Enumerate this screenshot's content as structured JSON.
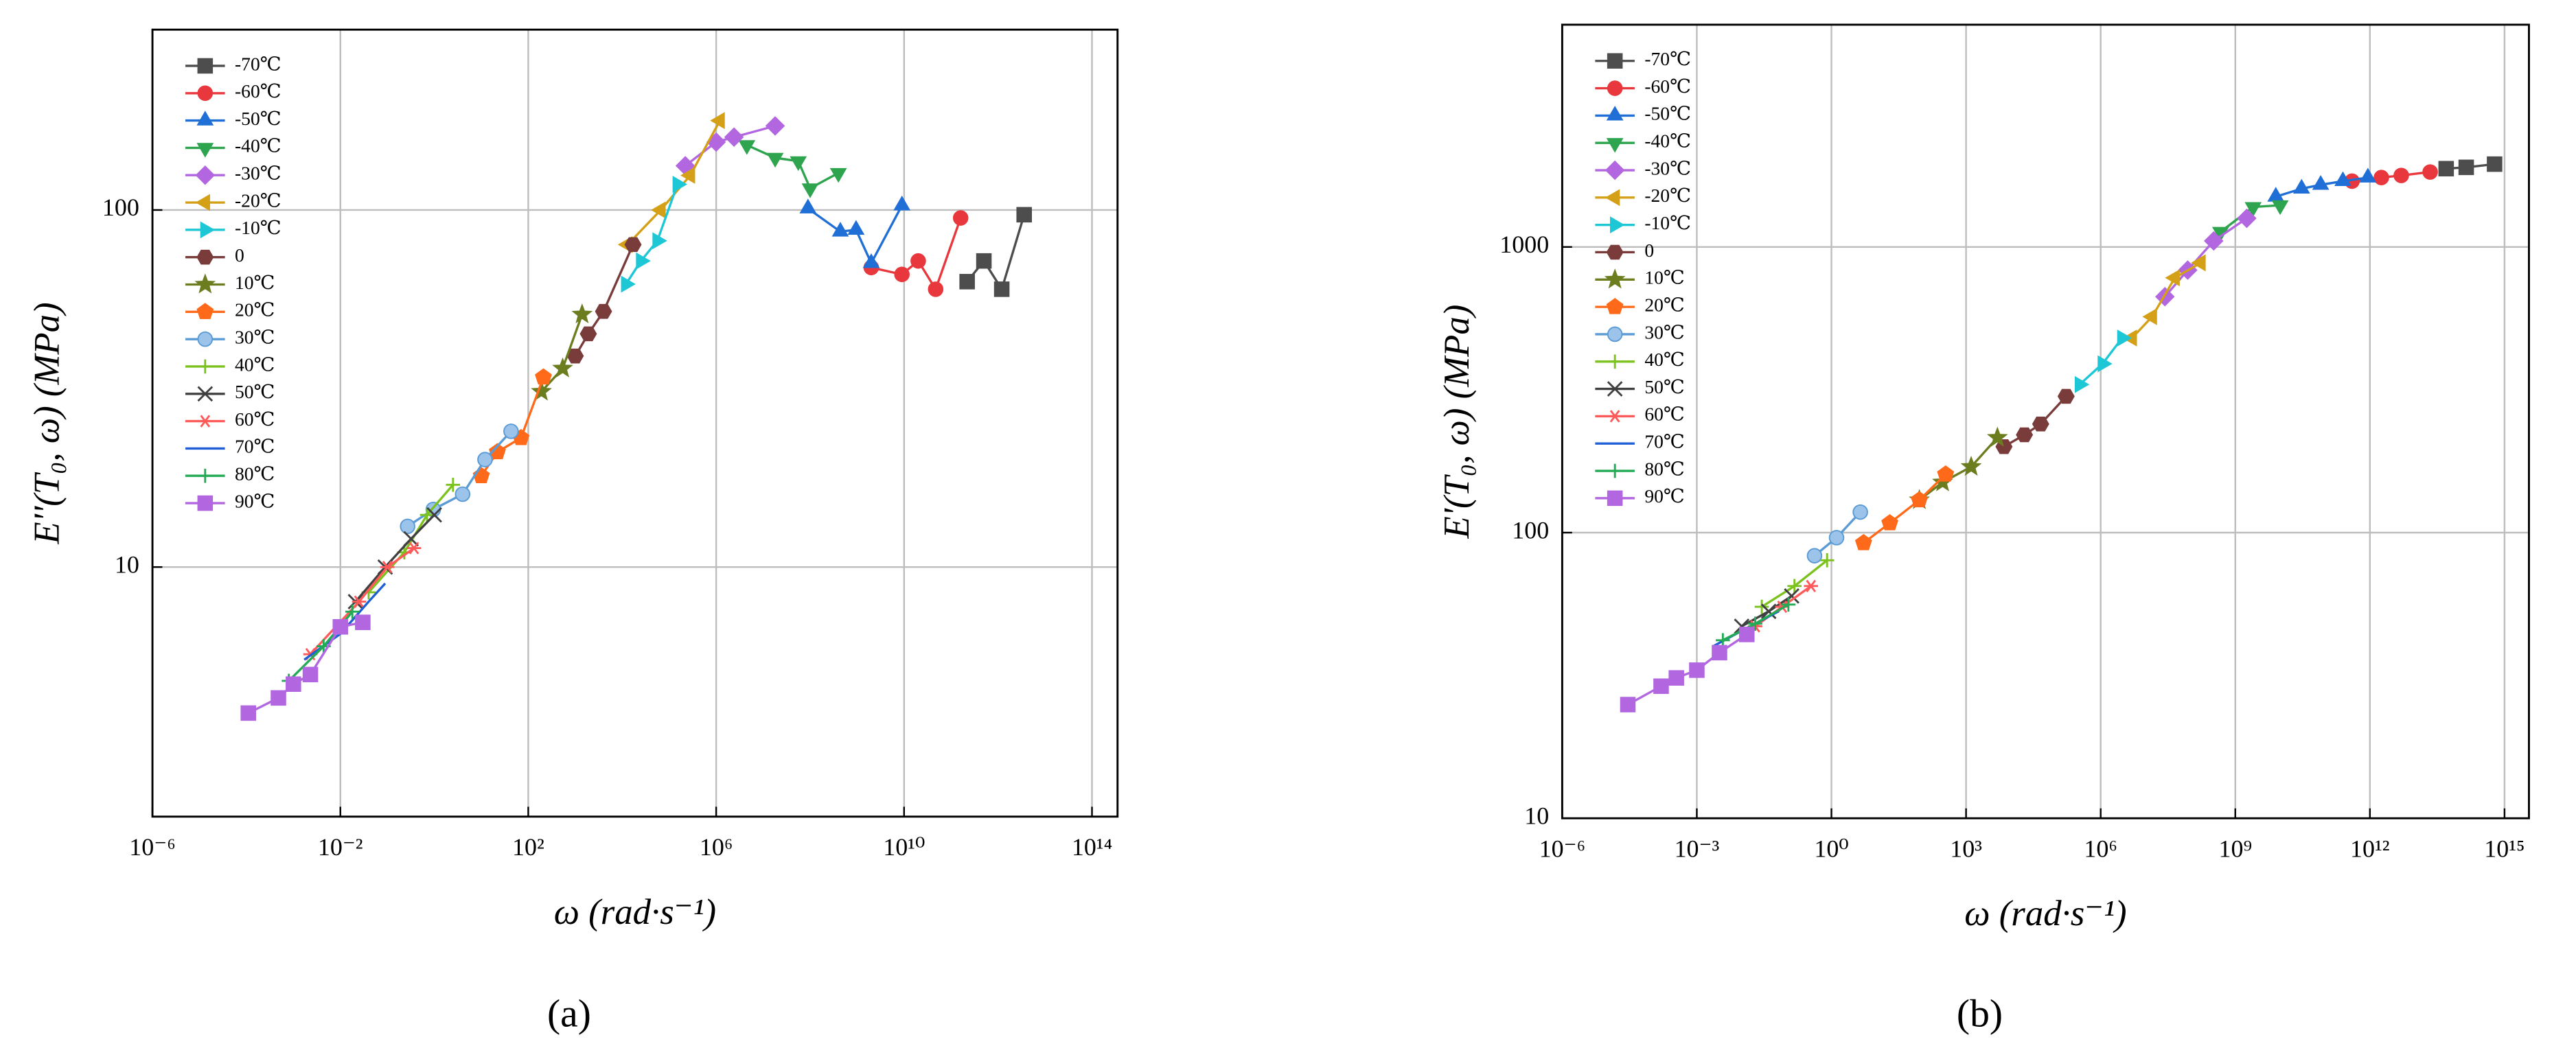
{
  "chart_data": [
    {
      "type": "line",
      "caption": "(a)",
      "xlabel": "ω (rad·s⁻¹)",
      "ylabel": "E''(T₀, ω) (MPa)",
      "xscale": "log",
      "yscale": "log",
      "xlim": [
        1e-06,
        350000000000000.0
      ],
      "ylim": [
        2,
        320
      ],
      "xticks": [
        {
          "value": 1e-06,
          "label": "10⁻⁶"
        },
        {
          "value": 0.01,
          "label": "10⁻²"
        },
        {
          "value": 100.0,
          "label": "10²"
        },
        {
          "value": 1000000.0,
          "label": "10⁶"
        },
        {
          "value": 10000000000.0,
          "label": "10¹⁰"
        },
        {
          "value": 100000000000000.0,
          "label": "10¹⁴"
        }
      ],
      "yticks": [
        10,
        100
      ],
      "grid": true,
      "legend": "upper left",
      "series": [
        {
          "name": "-70℃",
          "color": "#4d4d4d",
          "marker": "square",
          "x": [
            220000000000.0,
            500000000000.0,
            1200000000000.0,
            3600000000000.0
          ],
          "values": [
            63,
            72,
            60,
            97
          ]
        },
        {
          "name": "-60℃",
          "color": "#e8383d",
          "marker": "circle",
          "x": [
            2000000000.0,
            9000000000.0,
            20000000000.0,
            47000000000.0,
            160000000000.0
          ],
          "values": [
            69,
            66,
            72,
            60,
            95
          ]
        },
        {
          "name": "-50℃",
          "color": "#1f6fd6",
          "marker": "triangle-up",
          "x": [
            90000000.0,
            440000000.0,
            950000000.0,
            2000000000.0,
            9000000000.0
          ],
          "values": [
            101,
            87,
            88,
            71,
            103
          ]
        },
        {
          "name": "-40℃",
          "color": "#2ea44f",
          "marker": "triangle-down",
          "x": [
            4500000.0,
            18000000.0,
            56000000.0,
            100000000.0,
            400000000.0
          ],
          "values": [
            152,
            140,
            137,
            115,
            127
          ]
        },
        {
          "name": "-30℃",
          "color": "#b266e0",
          "marker": "diamond",
          "x": [
            220000.0,
            1000000.0,
            2400000.0,
            18000000.0
          ],
          "values": [
            133,
            155,
            160,
            172
          ]
        },
        {
          "name": "-20℃",
          "color": "#d4a017",
          "marker": "triangle-left",
          "x": [
            13000.0,
            66000.0,
            280000.0,
            1200000.0
          ],
          "values": [
            80,
            100,
            125,
            178
          ]
        },
        {
          "name": "-10℃",
          "color": "#1ec7d6",
          "marker": "triangle-right",
          "x": [
            12000.0,
            25000.0,
            56000.0,
            150000.0
          ],
          "values": [
            62,
            72,
            82,
            118
          ]
        },
        {
          "name": "0",
          "color": "#7a3b3b",
          "marker": "hexagon",
          "x": [
            1000.0,
            1900.0,
            4000.0,
            17000.0
          ],
          "values": [
            39,
            45,
            52,
            80
          ]
        },
        {
          "name": "10℃",
          "color": "#6b7d1f",
          "marker": "star",
          "x": [
            190,
            540,
            1400
          ],
          "values": [
            31,
            36,
            51
          ]
        },
        {
          "name": "20℃",
          "color": "#ff6a1a",
          "marker": "pentagon",
          "x": [
            10,
            22,
            70,
            210
          ],
          "values": [
            18,
            21,
            23,
            34
          ]
        },
        {
          "name": "30℃",
          "color": "#5b9bd5",
          "marker": "circle",
          "x": [
            0.27,
            0.95,
            4,
            12,
            43
          ],
          "values": [
            13,
            14.5,
            16,
            20,
            24
          ]
        },
        {
          "name": "40℃",
          "color": "#7cc21f",
          "marker": "plus",
          "x": [
            0.04,
            0.23,
            0.7,
            2.5
          ],
          "values": [
            8.5,
            11,
            14,
            17
          ]
        },
        {
          "name": "50℃",
          "color": "#404040",
          "marker": "x",
          "x": [
            0.021,
            0.09,
            0.32,
            1
          ],
          "values": [
            8,
            10,
            12,
            14
          ]
        },
        {
          "name": "60℃",
          "color": "#ff5a5a",
          "marker": "asterisk",
          "x": [
            0.0023,
            0.025,
            0.1,
            0.37
          ],
          "values": [
            5.7,
            8,
            10,
            11.3
          ]
        },
        {
          "name": "70℃",
          "color": "#1f5fd6",
          "marker": "none",
          "x": [
            0.0017,
            0.01,
            0.04,
            0.09
          ],
          "values": [
            5.5,
            6.5,
            8,
            9
          ]
        },
        {
          "name": "80℃",
          "color": "#22aa55",
          "marker": "plus",
          "x": [
            0.0008,
            0.0044,
            0.018
          ],
          "values": [
            4.8,
            6,
            7.5
          ]
        },
        {
          "name": "90℃",
          "color": "#b266e0",
          "marker": "square",
          "x": [
            0.00011,
            0.00048,
            0.001,
            0.0023,
            0.01,
            0.03
          ],
          "values": [
            3.9,
            4.3,
            4.7,
            5,
            6.8,
            7
          ]
        }
      ]
    },
    {
      "type": "line",
      "caption": "(b)",
      "xlabel": "ω (rad·s⁻¹)",
      "ylabel": "E'(T₀, ω) (MPa)",
      "xscale": "log",
      "yscale": "log",
      "xlim": [
        1e-06,
        3500000000000000.0
      ],
      "ylim": [
        10,
        6000
      ],
      "xticks": [
        {
          "value": 1e-06,
          "label": "10⁻⁶"
        },
        {
          "value": 0.001,
          "label": "10⁻³"
        },
        {
          "value": 1,
          "label": "10⁰"
        },
        {
          "value": 1000.0,
          "label": "10³"
        },
        {
          "value": 1000000.0,
          "label": "10⁶"
        },
        {
          "value": 1000000000.0,
          "label": "10⁹"
        },
        {
          "value": 1000000000000.0,
          "label": "10¹²"
        },
        {
          "value": 1000000000000000.0,
          "label": "10¹⁵"
        }
      ],
      "yticks": [
        10,
        100,
        1000
      ],
      "grid": true,
      "legend": "upper left",
      "series": [
        {
          "name": "-70℃",
          "color": "#4d4d4d",
          "marker": "square",
          "x": [
            50000000000000.0,
            140000000000000.0,
            600000000000000.0
          ],
          "values": [
            1880,
            1900,
            1950
          ]
        },
        {
          "name": "-60℃",
          "color": "#e8383d",
          "marker": "circle",
          "x": [
            400000000000.0,
            1800000000000.0,
            5000000000000.0,
            22000000000000.0
          ],
          "values": [
            1700,
            1750,
            1780,
            1830
          ]
        },
        {
          "name": "-50℃",
          "color": "#1f6fd6",
          "marker": "triangle-up",
          "x": [
            8000000000.0,
            30000000000.0,
            80000000000.0,
            250000000000.0,
            900000000000.0
          ],
          "values": [
            1500,
            1600,
            1650,
            1700,
            1750
          ]
        },
        {
          "name": "-40℃",
          "color": "#2ea44f",
          "marker": "triangle-down",
          "x": [
            470000000.0,
            2500000000.0,
            10000000000.0
          ],
          "values": [
            1130,
            1380,
            1400
          ]
        },
        {
          "name": "-30℃",
          "color": "#b266e0",
          "marker": "diamond",
          "x": [
            27000000.0,
            87000000.0,
            330000000.0,
            1800000000.0
          ],
          "values": [
            670,
            830,
            1050,
            1260
          ]
        },
        {
          "name": "-20℃",
          "color": "#d4a017",
          "marker": "triangle-left",
          "x": [
            5000000.0,
            14000000.0,
            45000000.0,
            170000000.0
          ],
          "values": [
            480,
            570,
            780,
            880
          ]
        },
        {
          "name": "-10℃",
          "color": "#1ec7d6",
          "marker": "triangle-right",
          "x": [
            340000.0,
            1100000.0,
            3000000.0
          ],
          "values": [
            330,
            390,
            480
          ]
        },
        {
          "name": "0",
          "color": "#7a3b3b",
          "marker": "hexagon",
          "x": [
            7000.0,
            20000.0,
            46000.0,
            170000.0
          ],
          "values": [
            200,
            220,
            240,
            300
          ]
        },
        {
          "name": "10℃",
          "color": "#6b7d1f",
          "marker": "star",
          "x": [
            91,
            300,
            1300,
            5000
          ],
          "values": [
            130,
            150,
            170,
            215
          ]
        },
        {
          "name": "20℃",
          "color": "#ff6a1a",
          "marker": "pentagon",
          "x": [
            5.2,
            20,
            91,
            350
          ],
          "values": [
            92,
            108,
            130,
            160
          ]
        },
        {
          "name": "30℃",
          "color": "#5b9bd5",
          "marker": "circle",
          "x": [
            0.42,
            1.3,
            4.4
          ],
          "values": [
            83,
            96,
            118
          ]
        },
        {
          "name": "40℃",
          "color": "#7cc21f",
          "marker": "plus",
          "x": [
            0.028,
            0.15,
            0.8
          ],
          "values": [
            55,
            65,
            80
          ]
        },
        {
          "name": "50℃",
          "color": "#404040",
          "marker": "x",
          "x": [
            0.01,
            0.04,
            0.13
          ],
          "values": [
            47,
            53,
            60
          ]
        },
        {
          "name": "60℃",
          "color": "#ff5a5a",
          "marker": "asterisk",
          "x": [
            0.02,
            0.08,
            0.35
          ],
          "values": [
            47,
            55,
            65
          ]
        },
        {
          "name": "70℃",
          "color": "#1f5fd6",
          "marker": "none",
          "x": [
            0.0023,
            0.012,
            0.066
          ],
          "values": [
            40,
            46,
            53
          ]
        },
        {
          "name": "80℃",
          "color": "#22aa55",
          "marker": "plus",
          "x": [
            0.0038,
            0.02,
            0.11
          ],
          "values": [
            42,
            48,
            56
          ]
        },
        {
          "name": "90℃",
          "color": "#b266e0",
          "marker": "square",
          "x": [
            2.9e-05,
            0.00016,
            0.00035,
            0.001,
            0.0032,
            0.013
          ],
          "values": [
            25,
            29,
            31,
            33,
            38,
            44
          ]
        }
      ]
    }
  ]
}
